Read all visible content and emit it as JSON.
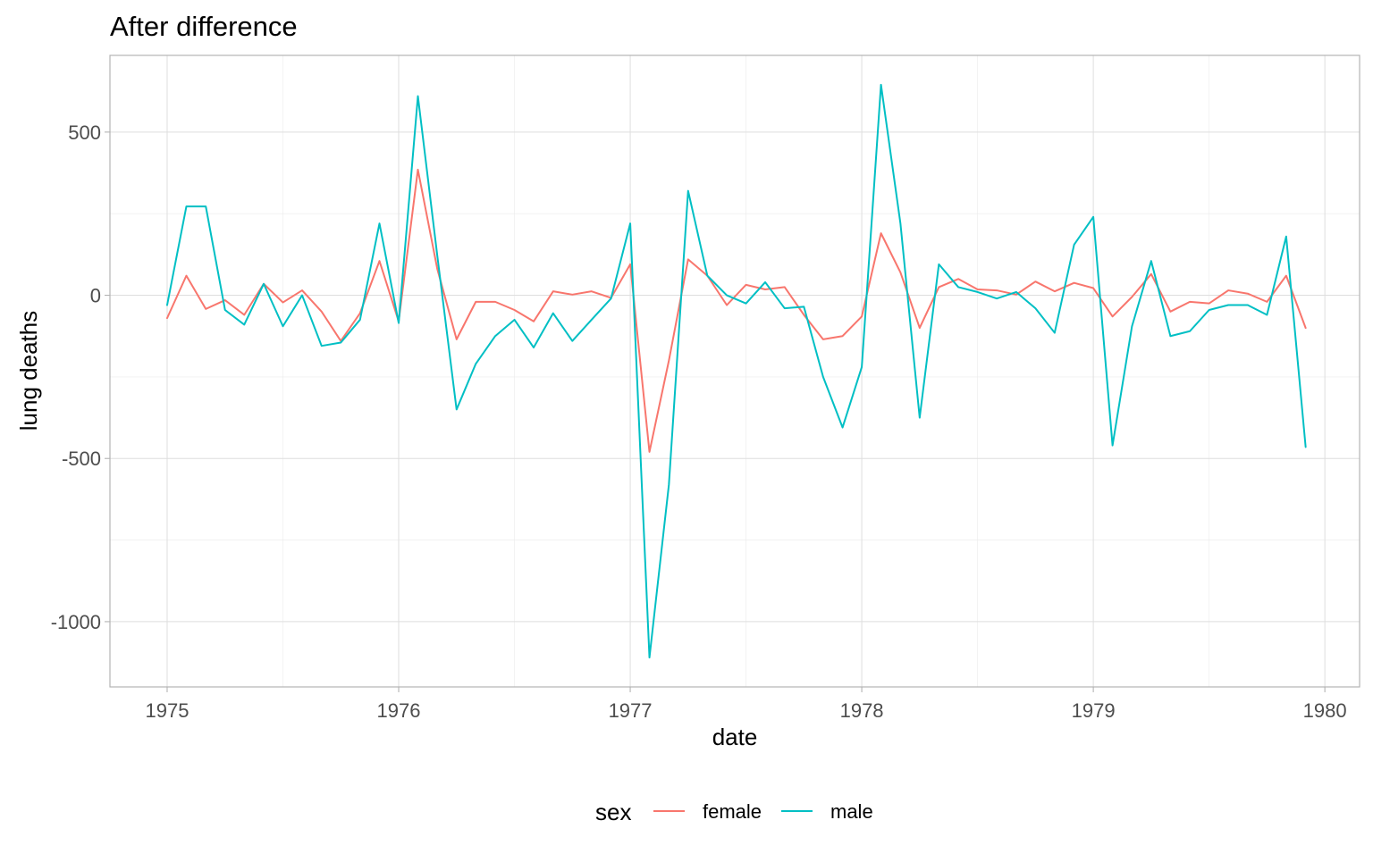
{
  "chart_data": {
    "type": "line",
    "title": "After difference",
    "xlabel": "date",
    "ylabel": "lung deaths",
    "xlim": [
      1974.753,
      1980.15
    ],
    "ylim": [
      -1200,
      735
    ],
    "x_ticks": [
      1975,
      1976,
      1977,
      1978,
      1979,
      1980
    ],
    "x_tick_labels": [
      "1975",
      "1976",
      "1977",
      "1978",
      "1979",
      "1980"
    ],
    "y_ticks": [
      -1000,
      -500,
      0,
      500
    ],
    "y_tick_labels": [
      "-1000",
      "-500",
      "0",
      "500"
    ],
    "grid": true,
    "legend": {
      "title": "sex",
      "position": "bottom"
    },
    "x": [
      1975.0,
      1975.083,
      1975.167,
      1975.25,
      1975.333,
      1975.417,
      1975.5,
      1975.583,
      1975.667,
      1975.75,
      1975.833,
      1975.917,
      1976.0,
      1976.083,
      1976.167,
      1976.25,
      1976.333,
      1976.417,
      1976.5,
      1976.583,
      1976.667,
      1976.75,
      1976.833,
      1976.917,
      1977.0,
      1977.083,
      1977.167,
      1977.25,
      1977.333,
      1977.417,
      1977.5,
      1977.583,
      1977.667,
      1977.75,
      1977.833,
      1977.917,
      1978.0,
      1978.083,
      1978.167,
      1978.25,
      1978.333,
      1978.417,
      1978.5,
      1978.583,
      1978.667,
      1978.75,
      1978.833,
      1978.917,
      1979.0,
      1979.083,
      1979.167,
      1979.25,
      1979.333,
      1979.417,
      1979.5,
      1979.583,
      1979.667,
      1979.75,
      1979.833,
      1979.917
    ],
    "series": [
      {
        "name": "female",
        "color": "#F8766D",
        "values": [
          -70,
          60,
          -42,
          -15,
          -60,
          35,
          -22,
          15,
          -50,
          -140,
          -55,
          105,
          -80,
          385,
          80,
          -135,
          -20,
          -20,
          -45,
          -80,
          12,
          2,
          12,
          -8,
          95,
          -480,
          -200,
          110,
          60,
          -30,
          32,
          18,
          25,
          -60,
          -135,
          -125,
          -65,
          190,
          70,
          -100,
          25,
          50,
          18,
          15,
          2,
          42,
          12,
          38,
          22,
          -65,
          -5,
          65,
          -50,
          -20,
          -25,
          15,
          5,
          -20,
          60,
          -100
        ]
      },
      {
        "name": "male",
        "color": "#00BFC4",
        "values": [
          -30,
          272,
          272,
          -45,
          -90,
          35,
          -95,
          0,
          -155,
          -145,
          -75,
          220,
          -85,
          610,
          120,
          -350,
          -210,
          -125,
          -75,
          -160,
          -55,
          -140,
          -75,
          -10,
          220,
          -1110,
          -580,
          320,
          60,
          0,
          -25,
          40,
          -40,
          -35,
          -250,
          -405,
          -220,
          645,
          220,
          -375,
          95,
          25,
          10,
          -10,
          10,
          -40,
          -115,
          155,
          240,
          -460,
          -95,
          105,
          -125,
          -110,
          -45,
          -30,
          -30,
          -60,
          180,
          -465
        ]
      }
    ]
  }
}
